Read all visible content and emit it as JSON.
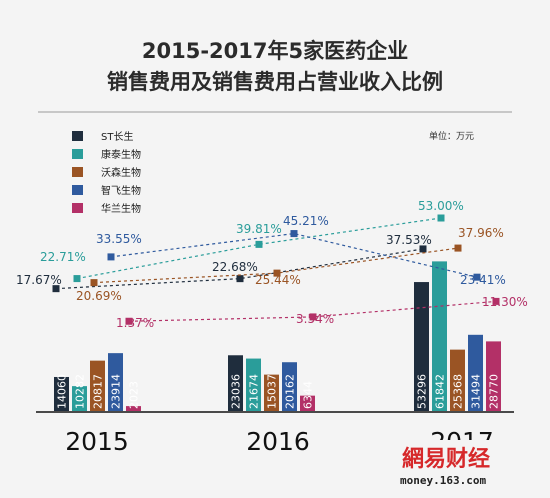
{
  "chart_data": {
    "type": "bar",
    "title_line1": "2015-2017年5家医药企业",
    "title_line2": "销售费用及销售费用占营业收入比例",
    "unit_label": "单位：万元",
    "categories": [
      "2015",
      "2016",
      "2017"
    ],
    "series": [
      {
        "name": "ST长生",
        "color": "#1f2d3d",
        "values": [
          14060,
          23036,
          53296
        ],
        "ratio_labels": [
          "17.67%",
          "22.68%",
          "37.53%"
        ],
        "ratios": [
          17.67,
          22.68,
          37.53
        ]
      },
      {
        "name": "康泰生物",
        "color": "#2a9d9a",
        "values": [
          10282,
          21674,
          61842
        ],
        "ratio_labels": [
          "22.71%",
          "39.81%",
          "53.00%"
        ],
        "ratios": [
          22.71,
          39.81,
          53.0
        ]
      },
      {
        "name": "沃森生物",
        "color": "#9a5424",
        "values": [
          20817,
          15037,
          25368
        ],
        "ratio_labels": [
          "20.69%",
          "25.44%",
          "37.96%"
        ],
        "ratios": [
          20.69,
          25.44,
          37.96
        ]
      },
      {
        "name": "智飞生物",
        "color": "#2f5a9e",
        "values": [
          23914,
          20162,
          31494
        ],
        "ratio_labels": [
          "33.55%",
          "45.21%",
          "23.41%"
        ],
        "ratios": [
          33.55,
          45.21,
          23.41
        ]
      },
      {
        "name": "华兰生物",
        "color": "#b33067",
        "values": [
          2023,
          6344,
          28770
        ],
        "ratio_labels": [
          "1.37%",
          "3.54%",
          "11.30%"
        ],
        "ratios": [
          1.37,
          3.54,
          11.3
        ]
      }
    ],
    "bar_value_labels": [
      [
        "14060",
        "10282",
        "20817",
        "23914",
        "2023"
      ],
      [
        "23036",
        "21674",
        "15037",
        "20162",
        "6344"
      ],
      [
        "53296",
        "61842",
        "25368",
        "31494",
        "28770"
      ]
    ],
    "legend_placement": "top-left",
    "grid": false
  },
  "watermark": {
    "text": "網易财经",
    "url": "money.163.com"
  }
}
